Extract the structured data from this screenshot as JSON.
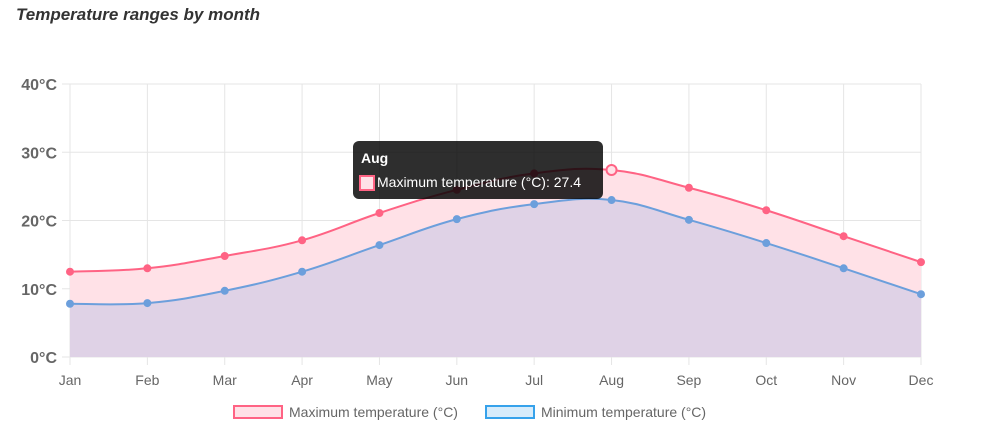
{
  "chart_data": {
    "type": "area",
    "title": "Temperature ranges by month",
    "categories": [
      "Jan",
      "Feb",
      "Mar",
      "Apr",
      "May",
      "Jun",
      "Jul",
      "Aug",
      "Sep",
      "Oct",
      "Nov",
      "Dec"
    ],
    "y_ticks": [
      "0°C",
      "10°C",
      "20°C",
      "30°C",
      "40°C"
    ],
    "ylim": [
      0,
      40
    ],
    "grid": true,
    "legend_position": "bottom",
    "series": [
      {
        "name": "Maximum temperature (°C)",
        "color": "#ff6384",
        "fill": "#ffe1e7",
        "values": [
          12.5,
          13.0,
          14.8,
          17.1,
          21.1,
          24.5,
          26.9,
          27.4,
          24.8,
          21.5,
          17.7,
          13.9
        ]
      },
      {
        "name": "Minimum temperature (°C)",
        "color": "#6c9fdc",
        "fill": "#dcd0e6",
        "values": [
          7.8,
          7.9,
          9.7,
          12.5,
          16.4,
          20.2,
          22.4,
          23.0,
          20.1,
          16.7,
          13.0,
          9.2
        ]
      }
    ],
    "tooltip": {
      "title": "Aug",
      "label": "Maximum temperature (°C): 27.4"
    }
  }
}
